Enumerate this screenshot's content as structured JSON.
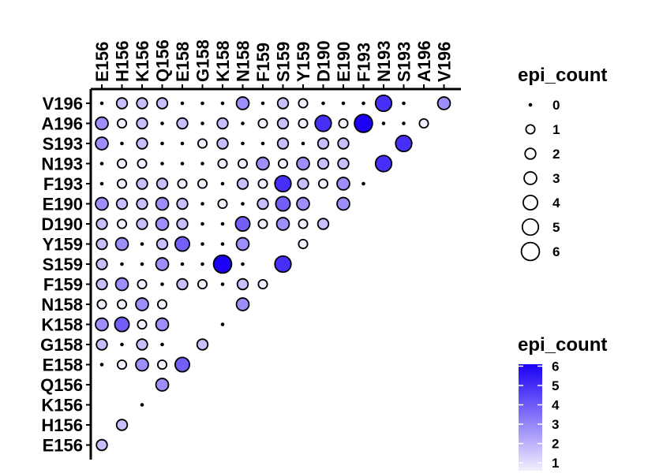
{
  "chart_data": {
    "type": "scatter",
    "title": "",
    "xlabel": "",
    "ylabel": "",
    "x_categories": [
      "E156",
      "H156",
      "K156",
      "Q156",
      "E158",
      "G158",
      "K158",
      "N158",
      "F159",
      "S159",
      "Y159",
      "D190",
      "E190",
      "F193",
      "N193",
      "S193",
      "A196",
      "V196"
    ],
    "y_categories": [
      "E156",
      "H156",
      "K156",
      "Q156",
      "E158",
      "G158",
      "K158",
      "N158",
      "F159",
      "S159",
      "Y159",
      "D190",
      "E190",
      "F193",
      "N193",
      "S193",
      "A196",
      "V196"
    ],
    "size_legend": {
      "title": "epi_count",
      "values": [
        0,
        1,
        2,
        3,
        4,
        5,
        6
      ]
    },
    "color_legend": {
      "title": "epi_count",
      "ticks": [
        1,
        2,
        3,
        4,
        5,
        6
      ],
      "low_color": "#f3eefd",
      "high_color": "#1b00f5"
    },
    "points": [
      {
        "x": "E156",
        "y": "V196",
        "v": 0
      },
      {
        "x": "H156",
        "y": "V196",
        "v": 2
      },
      {
        "x": "K156",
        "y": "V196",
        "v": 2
      },
      {
        "x": "Q156",
        "y": "V196",
        "v": 2
      },
      {
        "x": "E158",
        "y": "V196",
        "v": 0
      },
      {
        "x": "G158",
        "y": "V196",
        "v": 0
      },
      {
        "x": "K158",
        "y": "V196",
        "v": 0
      },
      {
        "x": "N158",
        "y": "V196",
        "v": 3
      },
      {
        "x": "F159",
        "y": "V196",
        "v": 0
      },
      {
        "x": "S159",
        "y": "V196",
        "v": 2
      },
      {
        "x": "Y159",
        "y": "V196",
        "v": 1
      },
      {
        "x": "D190",
        "y": "V196",
        "v": 0
      },
      {
        "x": "E190",
        "y": "V196",
        "v": 0
      },
      {
        "x": "F193",
        "y": "V196",
        "v": 0
      },
      {
        "x": "N193",
        "y": "V196",
        "v": 5
      },
      {
        "x": "S193",
        "y": "V196",
        "v": 0
      },
      {
        "x": "V196",
        "y": "V196",
        "v": 3
      },
      {
        "x": "E156",
        "y": "A196",
        "v": 3
      },
      {
        "x": "H156",
        "y": "A196",
        "v": 1
      },
      {
        "x": "K156",
        "y": "A196",
        "v": 2
      },
      {
        "x": "Q156",
        "y": "A196",
        "v": 0
      },
      {
        "x": "E158",
        "y": "A196",
        "v": 2
      },
      {
        "x": "G158",
        "y": "A196",
        "v": 0
      },
      {
        "x": "K158",
        "y": "A196",
        "v": 2
      },
      {
        "x": "N158",
        "y": "A196",
        "v": 0
      },
      {
        "x": "F159",
        "y": "A196",
        "v": 1
      },
      {
        "x": "S159",
        "y": "A196",
        "v": 2
      },
      {
        "x": "Y159",
        "y": "A196",
        "v": 1
      },
      {
        "x": "D190",
        "y": "A196",
        "v": 5
      },
      {
        "x": "E190",
        "y": "A196",
        "v": 1
      },
      {
        "x": "F193",
        "y": "A196",
        "v": 6
      },
      {
        "x": "N193",
        "y": "A196",
        "v": 0
      },
      {
        "x": "S193",
        "y": "A196",
        "v": 0
      },
      {
        "x": "A196",
        "y": "A196",
        "v": 1
      },
      {
        "x": "E156",
        "y": "S193",
        "v": 3
      },
      {
        "x": "H156",
        "y": "S193",
        "v": 0
      },
      {
        "x": "K156",
        "y": "S193",
        "v": 2
      },
      {
        "x": "Q156",
        "y": "S193",
        "v": 0
      },
      {
        "x": "E158",
        "y": "S193",
        "v": 0
      },
      {
        "x": "G158",
        "y": "S193",
        "v": 1
      },
      {
        "x": "K158",
        "y": "S193",
        "v": 2
      },
      {
        "x": "N158",
        "y": "S193",
        "v": 0
      },
      {
        "x": "F159",
        "y": "S193",
        "v": 0
      },
      {
        "x": "S159",
        "y": "S193",
        "v": 2
      },
      {
        "x": "Y159",
        "y": "S193",
        "v": 0
      },
      {
        "x": "D190",
        "y": "S193",
        "v": 2
      },
      {
        "x": "E190",
        "y": "S193",
        "v": 2
      },
      {
        "x": "S193",
        "y": "S193",
        "v": 5
      },
      {
        "x": "E156",
        "y": "N193",
        "v": 0
      },
      {
        "x": "H156",
        "y": "N193",
        "v": 1
      },
      {
        "x": "K156",
        "y": "N193",
        "v": 1
      },
      {
        "x": "Q156",
        "y": "N193",
        "v": 0
      },
      {
        "x": "E158",
        "y": "N193",
        "v": 0
      },
      {
        "x": "G158",
        "y": "N193",
        "v": 0
      },
      {
        "x": "K158",
        "y": "N193",
        "v": 1
      },
      {
        "x": "N158",
        "y": "N193",
        "v": 1
      },
      {
        "x": "F159",
        "y": "N193",
        "v": 3
      },
      {
        "x": "S159",
        "y": "N193",
        "v": 1
      },
      {
        "x": "Y159",
        "y": "N193",
        "v": 3
      },
      {
        "x": "D190",
        "y": "N193",
        "v": 2
      },
      {
        "x": "E190",
        "y": "N193",
        "v": 2
      },
      {
        "x": "N193",
        "y": "N193",
        "v": 5
      },
      {
        "x": "E156",
        "y": "F193",
        "v": 0
      },
      {
        "x": "H156",
        "y": "F193",
        "v": 1
      },
      {
        "x": "K156",
        "y": "F193",
        "v": 2
      },
      {
        "x": "Q156",
        "y": "F193",
        "v": 2
      },
      {
        "x": "E158",
        "y": "F193",
        "v": 1
      },
      {
        "x": "G158",
        "y": "F193",
        "v": 1
      },
      {
        "x": "K158",
        "y": "F193",
        "v": 0
      },
      {
        "x": "N158",
        "y": "F193",
        "v": 2
      },
      {
        "x": "F159",
        "y": "F193",
        "v": 1
      },
      {
        "x": "S159",
        "y": "F193",
        "v": 5
      },
      {
        "x": "Y159",
        "y": "F193",
        "v": 2
      },
      {
        "x": "D190",
        "y": "F193",
        "v": 1
      },
      {
        "x": "E190",
        "y": "F193",
        "v": 3
      },
      {
        "x": "F193",
        "y": "F193",
        "v": 0
      },
      {
        "x": "E156",
        "y": "E190",
        "v": 3
      },
      {
        "x": "H156",
        "y": "E190",
        "v": 2
      },
      {
        "x": "K156",
        "y": "E190",
        "v": 2
      },
      {
        "x": "Q156",
        "y": "E190",
        "v": 3
      },
      {
        "x": "E158",
        "y": "E190",
        "v": 2
      },
      {
        "x": "G158",
        "y": "E190",
        "v": 0
      },
      {
        "x": "K158",
        "y": "E190",
        "v": 1
      },
      {
        "x": "N158",
        "y": "E190",
        "v": 0
      },
      {
        "x": "F159",
        "y": "E190",
        "v": 2
      },
      {
        "x": "S159",
        "y": "E190",
        "v": 4
      },
      {
        "x": "Y159",
        "y": "E190",
        "v": 3
      },
      {
        "x": "E190",
        "y": "E190",
        "v": 3
      },
      {
        "x": "E156",
        "y": "D190",
        "v": 2
      },
      {
        "x": "H156",
        "y": "D190",
        "v": 1
      },
      {
        "x": "K156",
        "y": "D190",
        "v": 2
      },
      {
        "x": "Q156",
        "y": "D190",
        "v": 3
      },
      {
        "x": "E158",
        "y": "D190",
        "v": 2
      },
      {
        "x": "G158",
        "y": "D190",
        "v": 0
      },
      {
        "x": "K158",
        "y": "D190",
        "v": 0
      },
      {
        "x": "N158",
        "y": "D190",
        "v": 4
      },
      {
        "x": "F159",
        "y": "D190",
        "v": 1
      },
      {
        "x": "S159",
        "y": "D190",
        "v": 3
      },
      {
        "x": "Y159",
        "y": "D190",
        "v": 1
      },
      {
        "x": "D190",
        "y": "D190",
        "v": 2
      },
      {
        "x": "E156",
        "y": "Y159",
        "v": 2
      },
      {
        "x": "H156",
        "y": "Y159",
        "v": 3
      },
      {
        "x": "K156",
        "y": "Y159",
        "v": 0
      },
      {
        "x": "Q156",
        "y": "Y159",
        "v": 2
      },
      {
        "x": "E158",
        "y": "Y159",
        "v": 4
      },
      {
        "x": "G158",
        "y": "Y159",
        "v": 0
      },
      {
        "x": "K158",
        "y": "Y159",
        "v": 0
      },
      {
        "x": "N158",
        "y": "Y159",
        "v": 3
      },
      {
        "x": "Y159",
        "y": "Y159",
        "v": 1
      },
      {
        "x": "E156",
        "y": "S159",
        "v": 2
      },
      {
        "x": "H156",
        "y": "S159",
        "v": 0
      },
      {
        "x": "K156",
        "y": "S159",
        "v": 0
      },
      {
        "x": "Q156",
        "y": "S159",
        "v": 3
      },
      {
        "x": "E158",
        "y": "S159",
        "v": 0
      },
      {
        "x": "G158",
        "y": "S159",
        "v": 0
      },
      {
        "x": "K158",
        "y": "S159",
        "v": 6
      },
      {
        "x": "N158",
        "y": "S159",
        "v": 0
      },
      {
        "x": "S159",
        "y": "S159",
        "v": 5
      },
      {
        "x": "E156",
        "y": "F159",
        "v": 2
      },
      {
        "x": "H156",
        "y": "F159",
        "v": 3
      },
      {
        "x": "K156",
        "y": "F159",
        "v": 1
      },
      {
        "x": "Q156",
        "y": "F159",
        "v": 0
      },
      {
        "x": "E158",
        "y": "F159",
        "v": 2
      },
      {
        "x": "G158",
        "y": "F159",
        "v": 1
      },
      {
        "x": "K158",
        "y": "F159",
        "v": 0
      },
      {
        "x": "N158",
        "y": "F159",
        "v": 2
      },
      {
        "x": "F159",
        "y": "F159",
        "v": 1
      },
      {
        "x": "E156",
        "y": "N158",
        "v": 1
      },
      {
        "x": "H156",
        "y": "N158",
        "v": 1
      },
      {
        "x": "K156",
        "y": "N158",
        "v": 3
      },
      {
        "x": "Q156",
        "y": "N158",
        "v": 1
      },
      {
        "x": "N158",
        "y": "N158",
        "v": 3
      },
      {
        "x": "E156",
        "y": "K158",
        "v": 3
      },
      {
        "x": "H156",
        "y": "K158",
        "v": 4
      },
      {
        "x": "K156",
        "y": "K158",
        "v": 1
      },
      {
        "x": "Q156",
        "y": "K158",
        "v": 3
      },
      {
        "x": "K158",
        "y": "K158",
        "v": 0
      },
      {
        "x": "E156",
        "y": "G158",
        "v": 2
      },
      {
        "x": "H156",
        "y": "G158",
        "v": 0
      },
      {
        "x": "K156",
        "y": "G158",
        "v": 2
      },
      {
        "x": "Q156",
        "y": "G158",
        "v": 0
      },
      {
        "x": "G158",
        "y": "G158",
        "v": 2
      },
      {
        "x": "E156",
        "y": "E158",
        "v": 0
      },
      {
        "x": "H156",
        "y": "E158",
        "v": 1
      },
      {
        "x": "K156",
        "y": "E158",
        "v": 3
      },
      {
        "x": "Q156",
        "y": "E158",
        "v": 1
      },
      {
        "x": "E158",
        "y": "E158",
        "v": 4
      },
      {
        "x": "Q156",
        "y": "Q156",
        "v": 3
      },
      {
        "x": "K156",
        "y": "K156",
        "v": 0
      },
      {
        "x": "H156",
        "y": "H156",
        "v": 2
      },
      {
        "x": "E156",
        "y": "E156",
        "v": 2
      }
    ]
  }
}
